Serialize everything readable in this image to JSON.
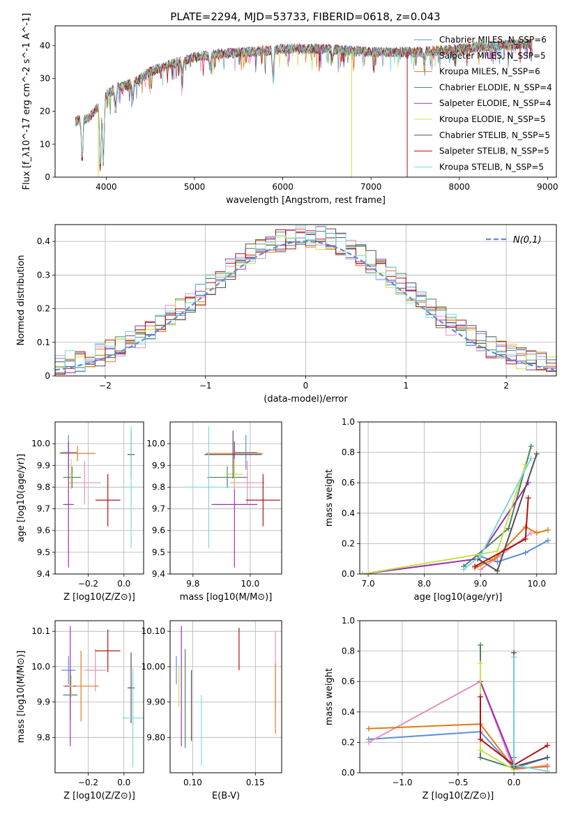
{
  "title": "PLATE=2294, MJD=53733, FIBERID=0618, z=0.043",
  "colors": {
    "chabrier_miles": "#5b8dd9",
    "salpeter_miles": "#e58fc0",
    "kroupa_miles": "#e07b1a",
    "chabrier_elodie": "#4f7f5f",
    "salpeter_elodie": "#9b30b0",
    "kroupa_elodie": "#c8e04a",
    "chabrier_stelib": "#505050",
    "salpeter_stelib": "#b01010",
    "kroupa_stelib": "#7dd8dc",
    "normal": "#5b8dd9",
    "grid": "#b0b0b0"
  },
  "chart_data": [
    {
      "id": "spectrum",
      "type": "line",
      "xlabel": "wavelength [Angstrom, rest frame]",
      "ylabel": "Flux [f_λ10^-17 erg cm^-2 s^-1 A^-1]",
      "xlim": [
        3420,
        9100
      ],
      "ylim": [
        0,
        46
      ],
      "xticks": [
        4000,
        5000,
        6000,
        7000,
        8000,
        9000
      ],
      "yticks": [
        0,
        10,
        20,
        30,
        40
      ],
      "grid": false,
      "legend_position": "top-right",
      "legend": [
        "Chabrier MILES, N_SSP=6",
        "Salpeter MILES, N_SSP=5",
        "Kroupa MILES, N_SSP=6",
        "Chabrier ELODIE, N_SSP=4",
        "Salpeter ELODIE, N_SSP=4",
        "Kroupa ELODIE, N_SSP=5",
        "Chabrier STELIB, N_SSP=5",
        "Salpeter STELIB, N_SSP=5",
        "Kroupa STELIB, N_SSP=5"
      ],
      "continuum": [
        [
          3650,
          17
        ],
        [
          3800,
          18
        ],
        [
          3900,
          21
        ],
        [
          4000,
          25
        ],
        [
          4100,
          27
        ],
        [
          4300,
          28.5
        ],
        [
          4500,
          32
        ],
        [
          4700,
          34
        ],
        [
          5000,
          36.5
        ],
        [
          5300,
          37.5
        ],
        [
          5600,
          38
        ],
        [
          6000,
          39
        ],
        [
          6500,
          39
        ],
        [
          7000,
          38
        ],
        [
          7500,
          38
        ],
        [
          8000,
          39
        ],
        [
          8400,
          40
        ],
        [
          8800,
          40.5
        ]
      ],
      "absorption_features": [
        [
          3727,
          13
        ],
        [
          3933,
          21
        ],
        [
          3968,
          20
        ],
        [
          4102,
          6
        ],
        [
          4300,
          5
        ],
        [
          4861,
          4
        ],
        [
          5175,
          4
        ],
        [
          5890,
          9
        ],
        [
          6563,
          3
        ],
        [
          7600,
          3
        ]
      ]
    },
    {
      "id": "residuals",
      "type": "step",
      "xlabel": "(data-model)/error",
      "ylabel": "Normed distribution",
      "xlim": [
        -2.5,
        2.5
      ],
      "ylim": [
        0,
        0.45
      ],
      "xticks": [
        -2,
        -1,
        0,
        1,
        2
      ],
      "yticks": [
        0.0,
        0.1,
        0.2,
        0.3,
        0.4
      ],
      "grid": true,
      "legend_position": "top-right",
      "legend": [
        "N(0,1)"
      ],
      "normal_peak": 0.4
    },
    {
      "id": "age_vs_Z",
      "type": "scatter",
      "xlabel": "Z [log10(Z/Z⊙)]",
      "ylabel": "age [log10(age/yr)]",
      "xlim": [
        -0.385,
        0.11
      ],
      "ylim": [
        9.4,
        10.1
      ],
      "xticks": [
        -0.2,
        0.0
      ],
      "yticks": [
        9.4,
        9.5,
        9.6,
        9.7,
        9.8,
        9.9,
        10.0
      ],
      "grid": true,
      "points": [
        {
          "c": "chabrier_miles",
          "x": -0.31,
          "xe": 0.045,
          "y": 9.96,
          "ye": 0.08
        },
        {
          "c": "salpeter_miles",
          "x": -0.22,
          "xe": 0.09,
          "y": 9.82,
          "ye": 0.1
        },
        {
          "c": "kroupa_miles",
          "x": -0.26,
          "xe": 0.1,
          "y": 9.955,
          "ye": 0.035
        },
        {
          "c": "chabrier_elodie",
          "x": -0.29,
          "xe": 0.05,
          "y": 9.845,
          "ye": 0.05
        },
        {
          "c": "salpeter_elodie",
          "x": -0.31,
          "xe": 0.03,
          "y": 9.72,
          "ye": 0.29
        },
        {
          "c": "kroupa_elodie",
          "x": -0.295,
          "xe": 0.01,
          "y": 9.86,
          "ye": 0.07
        },
        {
          "c": "chabrier_stelib",
          "x": 0.04,
          "xe": 0.02,
          "y": 9.95,
          "ye": 0.11
        },
        {
          "c": "salpeter_stelib",
          "x": -0.09,
          "xe": 0.07,
          "y": 9.74,
          "ye": 0.12
        },
        {
          "c": "kroupa_stelib",
          "x": 0.04,
          "xe": 0.045,
          "y": 9.8,
          "ye": 0.28
        }
      ]
    },
    {
      "id": "age_vs_mass",
      "type": "scatter",
      "xlabel": "mass [log10(M/M⊙)]",
      "ylabel": "",
      "xlim": [
        9.72,
        10.11
      ],
      "ylim": [
        9.4,
        10.1
      ],
      "xticks": [
        9.8,
        10.0
      ],
      "yticks": [
        9.4,
        9.5,
        9.6,
        9.7,
        9.8,
        9.9,
        10.0
      ],
      "grid": true,
      "points": [
        {
          "c": "chabrier_miles",
          "x": 9.985,
          "xe": 0.04,
          "y": 9.96,
          "ye": 0.08
        },
        {
          "c": "salpeter_miles",
          "x": 9.99,
          "xe": 0.06,
          "y": 9.82,
          "ye": 0.1
        },
        {
          "c": "kroupa_miles",
          "x": 9.945,
          "xe": 0.1,
          "y": 9.955,
          "ye": 0.035
        },
        {
          "c": "chabrier_elodie",
          "x": 9.92,
          "xe": 0.07,
          "y": 9.845,
          "ye": 0.05
        },
        {
          "c": "salpeter_elodie",
          "x": 9.945,
          "xe": 0.08,
          "y": 9.72,
          "ye": 0.29
        },
        {
          "c": "kroupa_elodie",
          "x": 9.945,
          "xe": 0.03,
          "y": 9.86,
          "ye": 0.07
        },
        {
          "c": "chabrier_stelib",
          "x": 9.94,
          "xe": 0.1,
          "y": 9.95,
          "ye": 0.11
        },
        {
          "c": "salpeter_stelib",
          "x": 10.045,
          "xe": 0.06,
          "y": 9.74,
          "ye": 0.12
        },
        {
          "c": "kroupa_stelib",
          "x": 9.855,
          "xe": 0.08,
          "y": 9.8,
          "ye": 0.28
        }
      ]
    },
    {
      "id": "mw_vs_age",
      "type": "line",
      "xlabel": "age [log10(age/yr)]",
      "ylabel": "mass weight",
      "xlim": [
        6.85,
        10.35
      ],
      "ylim": [
        0,
        1.0
      ],
      "xticks": [
        7,
        8,
        9,
        10
      ],
      "yticks": [
        0.0,
        0.2,
        0.4,
        0.6,
        0.8,
        1.0
      ],
      "grid": true,
      "series": [
        {
          "c": "chabrier_miles",
          "x": [
            8.95,
            9.3,
            9.8,
            10.2
          ],
          "y": [
            0.12,
            0.08,
            0.14,
            0.22
          ]
        },
        {
          "c": "salpeter_miles",
          "x": [
            9.0,
            9.35,
            9.9
          ],
          "y": [
            0.03,
            0.12,
            0.27
          ]
        },
        {
          "c": "kroupa_miles",
          "x": [
            8.9,
            9.25,
            9.8,
            10.0,
            10.2
          ],
          "y": [
            0.04,
            0.1,
            0.31,
            0.27,
            0.29
          ]
        },
        {
          "c": "chabrier_elodie",
          "x": [
            8.7,
            9.5,
            9.9
          ],
          "y": [
            0.05,
            0.3,
            0.84
          ]
        },
        {
          "c": "salpeter_elodie",
          "x": [
            6.9,
            8.95,
            9.85
          ],
          "y": [
            0.0,
            0.1,
            0.6
          ]
        },
        {
          "c": "kroupa_elodie",
          "x": [
            6.9,
            9.3,
            9.8
          ],
          "y": [
            0.0,
            0.15,
            0.72
          ]
        },
        {
          "c": "chabrier_stelib",
          "x": [
            8.95,
            9.3,
            10.0
          ],
          "y": [
            0.1,
            0.02,
            0.79
          ]
        },
        {
          "c": "salpeter_stelib",
          "x": [
            8.9,
            9.8,
            9.85
          ],
          "y": [
            0.05,
            0.23,
            0.5
          ]
        },
        {
          "c": "kroupa_stelib",
          "x": [
            8.7,
            9.0,
            9.9
          ],
          "y": [
            0.03,
            0.12,
            0.76
          ]
        }
      ]
    },
    {
      "id": "mass_vs_Z",
      "type": "scatter",
      "xlabel": "Z [log10(Z/Z⊙)]",
      "ylabel": "mass [log10(M/M⊙)]",
      "xlim": [
        -0.385,
        0.11
      ],
      "ylim": [
        9.7,
        10.13
      ],
      "xticks": [
        -0.2,
        0.0
      ],
      "yticks": [
        9.8,
        9.9,
        10.0,
        10.1
      ],
      "grid": true,
      "points": [
        {
          "c": "chabrier_miles",
          "x": -0.31,
          "xe": 0.04,
          "y": 9.99,
          "ye": 0.04
        },
        {
          "c": "salpeter_miles",
          "x": -0.16,
          "xe": 0.06,
          "y": 9.99,
          "ye": 0.06
        },
        {
          "c": "kroupa_miles",
          "x": -0.24,
          "xe": 0.1,
          "y": 9.945,
          "ye": 0.1
        },
        {
          "c": "chabrier_elodie",
          "x": -0.3,
          "xe": 0.04,
          "y": 9.92,
          "ye": 0.07
        },
        {
          "c": "salpeter_elodie",
          "x": -0.3,
          "xe": 0.03,
          "y": 9.945,
          "ye": 0.17
        },
        {
          "c": "kroupa_elodie",
          "x": -0.295,
          "xe": 0.01,
          "y": 9.945,
          "ye": 0.03
        },
        {
          "c": "chabrier_stelib",
          "x": 0.04,
          "xe": 0.02,
          "y": 9.94,
          "ye": 0.1
        },
        {
          "c": "salpeter_stelib",
          "x": -0.09,
          "xe": 0.07,
          "y": 10.045,
          "ye": 0.06
        },
        {
          "c": "kroupa_stelib",
          "x": 0.05,
          "xe": 0.06,
          "y": 9.855,
          "ye": 0.14
        }
      ]
    },
    {
      "id": "mass_vs_ebv",
      "type": "scatter",
      "xlabel": "E(B-V)",
      "ylabel": "",
      "xlim": [
        0.082,
        0.171
      ],
      "ylim": [
        9.7,
        10.13
      ],
      "xticks": [
        0.1,
        0.15
      ],
      "yticks": [
        9.8,
        9.9,
        10.0,
        10.1
      ],
      "grid": true,
      "points": [
        {
          "c": "chabrier_miles",
          "x": 0.087,
          "xe": 0.0,
          "y": 9.99,
          "ye": 0.04
        },
        {
          "c": "salpeter_miles",
          "x": 0.166,
          "xe": 0.0,
          "y": 9.99,
          "ye": 0.11
        },
        {
          "c": "kroupa_miles",
          "x": 0.166,
          "xe": 0.0,
          "y": 9.91,
          "ye": 0.1
        },
        {
          "c": "chabrier_elodie",
          "x": 0.094,
          "xe": 0.0,
          "y": 9.91,
          "ye": 0.14
        },
        {
          "c": "salpeter_elodie",
          "x": 0.091,
          "xe": 0.0,
          "y": 9.945,
          "ye": 0.17
        },
        {
          "c": "kroupa_elodie",
          "x": 0.089,
          "xe": 0.0,
          "y": 9.945,
          "ye": 0.06
        },
        {
          "c": "chabrier_stelib",
          "x": 0.099,
          "xe": 0.0,
          "y": 9.89,
          "ye": 0.1
        },
        {
          "c": "salpeter_stelib",
          "x": 0.137,
          "xe": 0.0,
          "y": 10.05,
          "ye": 0.06
        },
        {
          "c": "kroupa_stelib",
          "x": 0.107,
          "xe": 0.0,
          "y": 9.82,
          "ye": 0.1
        }
      ]
    },
    {
      "id": "mw_vs_Z",
      "type": "line",
      "xlabel": "Z [log10(Z/Z⊙)]",
      "ylabel": "mass weight",
      "xlim": [
        -1.38,
        0.38
      ],
      "ylim": [
        0,
        1.0
      ],
      "xticks": [
        -1.0,
        -0.5,
        0.0
      ],
      "yticks": [
        0.0,
        0.2,
        0.4,
        0.6,
        0.8,
        1.0
      ],
      "grid": true,
      "series": [
        {
          "c": "chabrier_miles",
          "x": [
            -1.3,
            -0.3,
            0.0,
            0.3
          ],
          "y": [
            0.22,
            0.27,
            0.03,
            0.1
          ]
        },
        {
          "c": "salpeter_miles",
          "x": [
            -1.3,
            -0.3,
            0.0,
            0.3
          ],
          "y": [
            0.2,
            0.6,
            0.02,
            0.05
          ]
        },
        {
          "c": "kroupa_miles",
          "x": [
            -1.3,
            -0.3,
            0.0,
            0.3
          ],
          "y": [
            0.29,
            0.32,
            0.03,
            0.04
          ]
        },
        {
          "c": "chabrier_elodie",
          "x": [
            -0.3,
            -0.3,
            0.0
          ],
          "y": [
            0.84,
            0.1,
            0.03
          ]
        },
        {
          "c": "salpeter_elodie",
          "x": [
            -0.3,
            0.0,
            0.0
          ],
          "y": [
            0.6,
            0.05,
            0.1
          ]
        },
        {
          "c": "kroupa_elodie",
          "x": [
            -0.3,
            -0.3,
            0.0
          ],
          "y": [
            0.72,
            0.15,
            0.02
          ]
        },
        {
          "c": "chabrier_stelib",
          "x": [
            0.0,
            0.0,
            0.3
          ],
          "y": [
            0.79,
            0.04,
            0.1
          ]
        },
        {
          "c": "salpeter_stelib",
          "x": [
            -0.3,
            -0.3,
            0.0,
            0.3
          ],
          "y": [
            0.5,
            0.22,
            0.05,
            0.18
          ]
        },
        {
          "c": "kroupa_stelib",
          "x": [
            0.0,
            0.0,
            0.3
          ],
          "y": [
            0.76,
            0.05,
            0.01
          ]
        }
      ]
    }
  ]
}
